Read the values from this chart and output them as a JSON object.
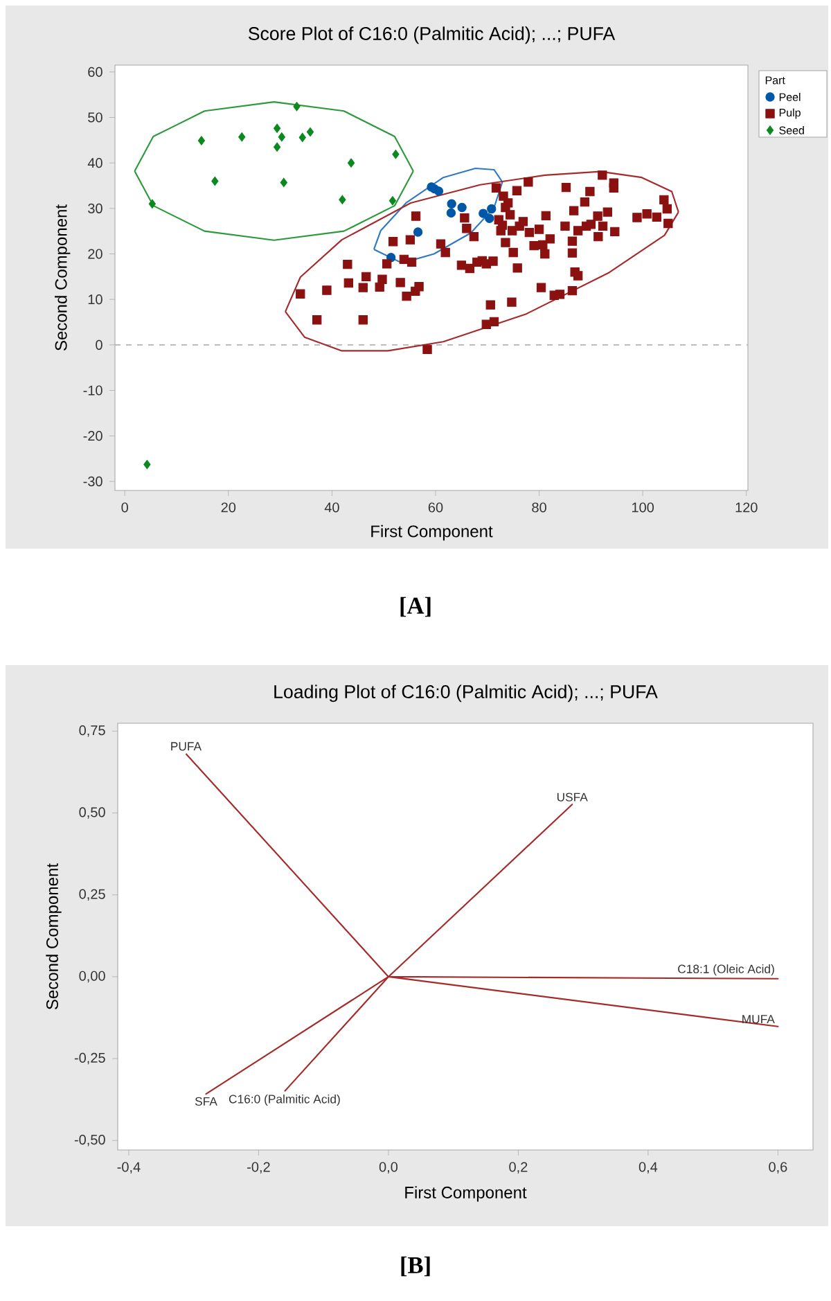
{
  "chart_data": [
    {
      "type": "scatter",
      "title": "Score Plot of C16:0 (Palmitic Acid); ...; PUFA",
      "xlabel": "First Component",
      "ylabel": "Second Component",
      "legend_title": "Part",
      "legend": "top right",
      "xlim": [
        -1.9,
        120.3
      ],
      "ylim": [
        -32,
        61.5
      ],
      "xticks": [
        0,
        20,
        40,
        60,
        80,
        100,
        120
      ],
      "yticks": [
        -30,
        -20,
        -10,
        0,
        10,
        20,
        30,
        40,
        50,
        60
      ],
      "ref_lines": [
        {
          "axis": "y",
          "value": 0,
          "color": "#b4b4b4",
          "line_style": "dashed"
        }
      ],
      "annotations": [
        "[A]"
      ],
      "series": [
        {
          "name": "Peel",
          "type": "scatter",
          "marker": "circle",
          "color": "#0057a8",
          "x": [
            51.4,
            56.6,
            59.2,
            59.8,
            60.6,
            63.1,
            63.0,
            65.1,
            69.2,
            70.4,
            70.8
          ],
          "values": [
            19.2,
            24.8,
            34.7,
            34.3,
            33.8,
            31.0,
            29.0,
            30.2,
            28.9,
            27.8,
            29.9
          ]
        },
        {
          "name": "Pulp",
          "type": "scatter",
          "marker": "square",
          "color": "#8b1010",
          "x": [
            33.9,
            37.1,
            39.0,
            43.0,
            43.2,
            46.0,
            46.0,
            46.6,
            49.2,
            49.7,
            50.6,
            51.8,
            53.2,
            54.4,
            55.1,
            55.4,
            56.2,
            56.1,
            56.8,
            53.9,
            58.4,
            61.0,
            61.9,
            65.0,
            65.6,
            66.0,
            66.6,
            67.4,
            68.0,
            69.0,
            69.8,
            71.1,
            70.6,
            69.8,
            71.3,
            71.7,
            72.2,
            72.9,
            73.1,
            73.5,
            73.5,
            74.0,
            74.4,
            74.7,
            74.8,
            75.0,
            75.7,
            75.8,
            76.2,
            76.9,
            77.9,
            78.1,
            79.0,
            80.0,
            80.4,
            80.7,
            81.1,
            81.3,
            82.1,
            82.9,
            84.0,
            85.0,
            85.2,
            86.4,
            86.4,
            86.4,
            86.7,
            86.9,
            87.5,
            87.5,
            88.8,
            89.1,
            89.8,
            90.0,
            91.3,
            91.4,
            92.3,
            92.2,
            93.2,
            94.4,
            94.4,
            94.6,
            98.9,
            100.8,
            102.7,
            104.1,
            104.7,
            104.9,
            72.6
          ],
          "values": [
            11.2,
            5.5,
            12.0,
            17.7,
            13.6,
            5.5,
            12.6,
            15.0,
            12.7,
            14.4,
            17.8,
            22.7,
            13.7,
            10.7,
            23.1,
            18.2,
            28.3,
            11.8,
            12.8,
            18.8,
            -1.0,
            22.2,
            20.3,
            17.5,
            27.9,
            25.6,
            16.8,
            23.8,
            18.2,
            18.5,
            17.8,
            18.4,
            8.8,
            4.5,
            5.1,
            34.5,
            27.5,
            26.3,
            32.7,
            30.2,
            22.5,
            31.2,
            28.6,
            9.4,
            25.1,
            20.3,
            33.9,
            16.9,
            26.1,
            27.1,
            35.8,
            24.7,
            21.8,
            25.4,
            12.6,
            22.0,
            20.0,
            28.4,
            23.3,
            10.9,
            11.1,
            26.1,
            34.6,
            22.8,
            20.2,
            11.9,
            29.5,
            16.0,
            15.2,
            25.1,
            31.4,
            26.1,
            33.7,
            26.5,
            28.3,
            23.8,
            26.1,
            37.3,
            29.2,
            35.6,
            34.5,
            24.9,
            28.0,
            28.8,
            28.1,
            31.9,
            29.9,
            26.7,
            25.1
          ]
        },
        {
          "name": "Seed",
          "type": "scatter",
          "marker": "diamond",
          "color": "#0a8a1e",
          "x": [
            4.3,
            5.3,
            14.8,
            17.4,
            22.6,
            29.4,
            30.3,
            29.4,
            30.7,
            33.2,
            34.3,
            35.8,
            42.0,
            43.7,
            51.7,
            52.3
          ],
          "values": [
            -26.3,
            31.0,
            44.9,
            36.0,
            45.7,
            47.6,
            45.7,
            43.5,
            35.7,
            52.4,
            45.6,
            46.8,
            31.9,
            40.0,
            31.7,
            41.9
          ]
        },
        {
          "type": "line",
          "marker": "none",
          "color": "#2a9a3a",
          "x": [
            1.9,
            5.5,
            15.4,
            28.8,
            42.3,
            52.1,
            55.7
          ],
          "values": [
            38.2,
            45.8,
            51.4,
            53.4,
            51.4,
            45.8,
            38.2
          ]
        },
        {
          "type": "line",
          "marker": "none",
          "color": "#2a9a3a",
          "x": [
            1.9,
            5.5,
            15.4,
            28.8,
            42.3,
            52.1,
            55.7
          ],
          "values": [
            38.2,
            30.6,
            25.0,
            23.0,
            25.0,
            30.6,
            38.2
          ]
        },
        {
          "type": "line",
          "marker": "none",
          "color": "#2f78c4",
          "x": [
            48.1,
            49.4,
            54.3,
            61.5,
            67.7,
            71.3,
            72.9
          ],
          "values": [
            21.0,
            25.1,
            31.2,
            36.8,
            38.8,
            38.5,
            35.8
          ]
        },
        {
          "type": "line",
          "marker": "none",
          "color": "#2f78c4",
          "x": [
            48.1,
            53.5,
            59.7,
            66.8,
            71.3,
            72.9
          ],
          "values": [
            21.0,
            18.0,
            20.0,
            24.6,
            30.2,
            35.8
          ]
        },
        {
          "type": "line",
          "marker": "none",
          "color": "#a52a2a",
          "x": [
            31.0,
            33.9,
            41.9,
            55.2,
            68.6,
            81.1,
            91.8,
            99.8,
            105.6,
            106.9
          ],
          "values": [
            7.3,
            14.9,
            23.1,
            31.2,
            35.2,
            37.3,
            38.1,
            36.8,
            33.7,
            29.2
          ]
        },
        {
          "type": "line",
          "marker": "none",
          "color": "#a52a2a",
          "x": [
            31.0,
            34.7,
            41.9,
            50.8,
            61.5,
            77.5,
            93.5,
            104.2,
            106.9
          ],
          "values": [
            7.3,
            1.7,
            -1.3,
            -1.3,
            0.7,
            6.8,
            15.9,
            24.1,
            29.2
          ]
        }
      ]
    },
    {
      "type": "line",
      "title": "Loading Plot of C16:0 (Palmitic Acid); ...; PUFA",
      "xlabel": "First Component",
      "ylabel": "Second Component",
      "marker": "none",
      "xlim": [
        -0.417,
        0.654
      ],
      "ylim": [
        -0.529,
        0.774
      ],
      "xticks": [
        {
          "value": -0.4,
          "label": "-0,4"
        },
        {
          "value": -0.2,
          "label": "-0,2"
        },
        {
          "value": 0,
          "label": "0,0"
        },
        {
          "value": 0.2,
          "label": "0,2"
        },
        {
          "value": 0.4,
          "label": "0,4"
        },
        {
          "value": 0.6,
          "label": "0,6"
        }
      ],
      "yticks": [
        {
          "value": -0.5,
          "label": "-0,50"
        },
        {
          "value": -0.25,
          "label": "-0,25"
        },
        {
          "value": 0,
          "label": "0,00"
        },
        {
          "value": 0.25,
          "label": "0,25"
        },
        {
          "value": 0.5,
          "label": "0,50"
        },
        {
          "value": 0.75,
          "label": "0,75"
        }
      ],
      "annotations": [
        {
          "text": "PUFA",
          "x": -0.312,
          "y": 0.681
        },
        {
          "text": "USFA",
          "x": 0.283,
          "y": 0.526
        },
        {
          "text": "C18:1 (Oleic Acid)",
          "x": 0.6,
          "y": -0.006
        },
        {
          "text": "MUFA",
          "x": 0.6,
          "y": -0.152
        },
        {
          "text": "SFA",
          "x": -0.281,
          "y": -0.358
        },
        {
          "text": "C16:0 (Palmitic Acid)",
          "x": -0.16,
          "y": -0.35
        },
        "[B]"
      ],
      "series": [
        {
          "color": "#a52a2a",
          "x": [
            -0.312,
            0,
            0.283,
            0,
            0.6,
            0,
            0.6,
            0,
            -0.281,
            0,
            -0.16
          ],
          "values": [
            0.681,
            0,
            0.526,
            0,
            -0.006,
            0,
            -0.152,
            0,
            -0.358,
            0,
            -0.35
          ]
        }
      ]
    }
  ]
}
